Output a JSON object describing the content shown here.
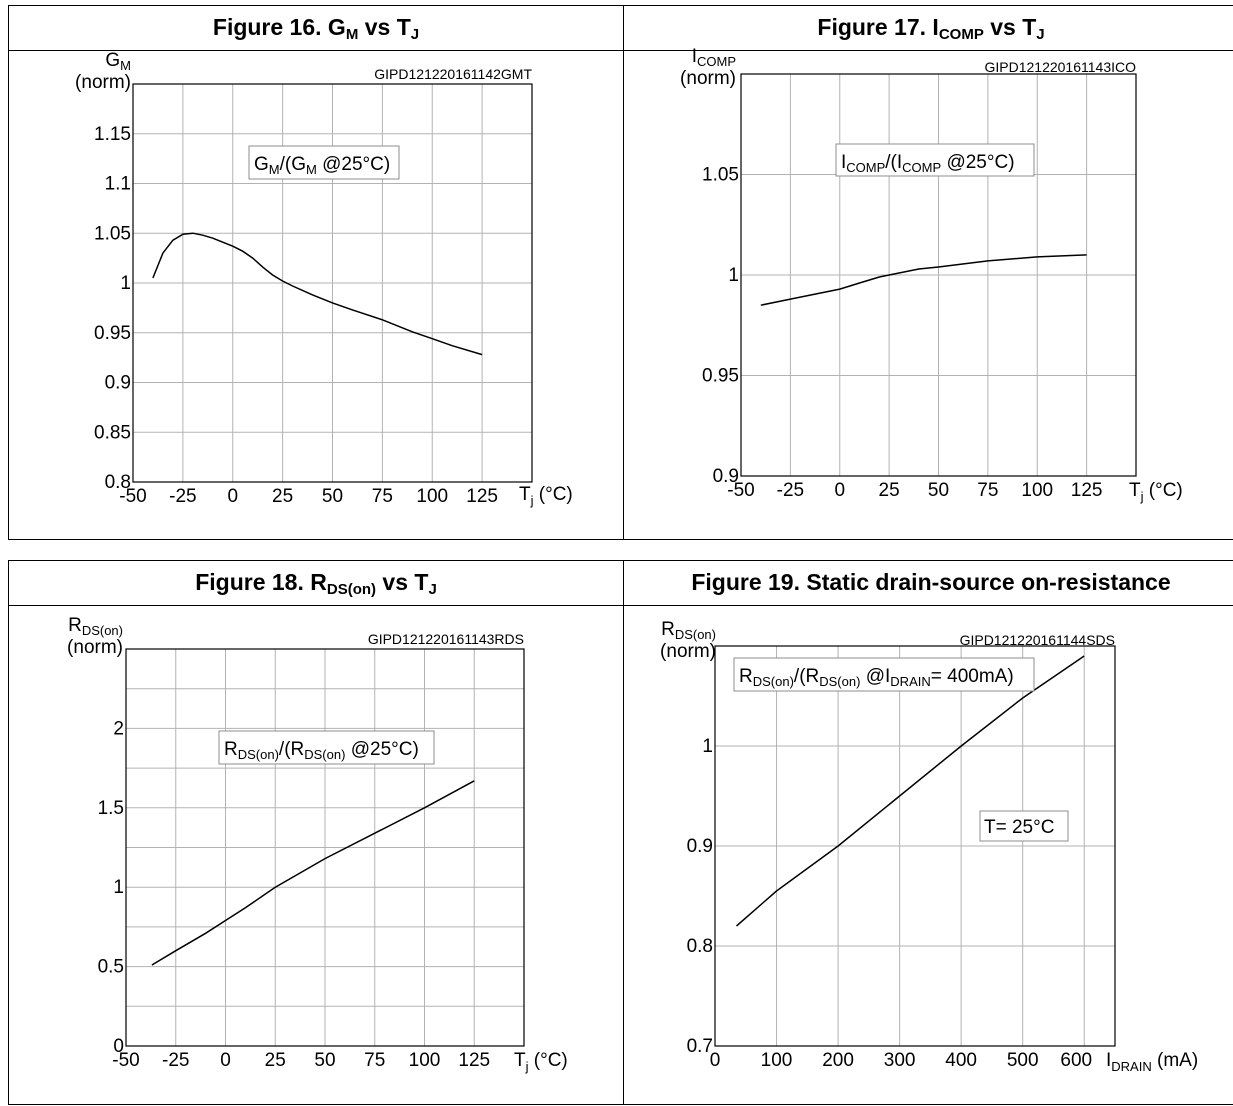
{
  "colors": {
    "background": "#ffffff",
    "grid": "#b3b3b3",
    "curve": "#000000"
  },
  "chart_data": [
    {
      "type": "line",
      "title": "Figure 16. G_M vs T_J",
      "title_parts": {
        "prefix": "Figure 16. G",
        "sub1": "M",
        "mid": " vs T",
        "sub2": "J"
      },
      "code": "GIPD121220161142GMT",
      "ylabel": "G_M (norm)",
      "ylabel_parts": {
        "main": "G",
        "sub": "M",
        "line2": "(norm)"
      },
      "xlabel": "T_j (°C)",
      "xlabel_parts": {
        "main": "T",
        "sub": "j",
        "rest": " (°C)"
      },
      "annotation": "G_M/(G_M @25°C)",
      "annotation_parts": [
        "G",
        "M",
        "/(G",
        "M",
        " @25°C)"
      ],
      "xlim": [
        -50,
        150
      ],
      "ylim": [
        0.8,
        1.2
      ],
      "xticks": [
        -50,
        -25,
        0,
        25,
        50,
        75,
        100,
        125
      ],
      "xtick_labels": [
        "-50",
        "-25",
        "0",
        "25",
        "50",
        "75",
        "100",
        "125"
      ],
      "yticks": [
        0.8,
        0.85,
        0.9,
        0.95,
        1,
        1.05,
        1.1,
        1.15
      ],
      "ytick_labels": [
        "0.8",
        "0.85",
        "0.9",
        "0.95",
        "1",
        "1.05",
        "1.1",
        "1.15"
      ],
      "grid": true,
      "series": [
        {
          "x": [
            -40,
            -35,
            -30,
            -25,
            -20,
            -15,
            -10,
            -5,
            0,
            5,
            10,
            15,
            20,
            25,
            30,
            40,
            50,
            60,
            75,
            90,
            100,
            110,
            125
          ],
          "y": [
            1.005,
            1.03,
            1.043,
            1.049,
            1.05,
            1.048,
            1.045,
            1.041,
            1.037,
            1.032,
            1.025,
            1.016,
            1.008,
            1.002,
            0.997,
            0.988,
            0.98,
            0.973,
            0.963,
            0.951,
            0.944,
            0.937,
            0.928
          ]
        }
      ]
    },
    {
      "type": "line",
      "title": "Figure 17. I_COMP vs T_J",
      "title_parts": {
        "prefix": "Figure 17. I",
        "sub1": "COMP",
        "mid": " vs T",
        "sub2": "J"
      },
      "code": "GIPD121220161143ICO",
      "ylabel": "I_COMP (norm)",
      "ylabel_parts": {
        "main": "I",
        "sub": "COMP",
        "line2": "(norm)"
      },
      "xlabel": "T_j (°C)",
      "xlabel_parts": {
        "main": "T",
        "sub": "j",
        "rest": " (°C)"
      },
      "annotation": "I_COMP/(I_COMP @25°C)",
      "annotation_parts": [
        "I",
        "COMP",
        "/(I",
        "COMP",
        " @25°C)"
      ],
      "xlim": [
        -50,
        150
      ],
      "ylim": [
        0.9,
        1.1
      ],
      "xticks": [
        -50,
        -25,
        0,
        25,
        50,
        75,
        100,
        125
      ],
      "xtick_labels": [
        "-50",
        "-25",
        "0",
        "25",
        "50",
        "75",
        "100",
        "125"
      ],
      "yticks": [
        0.9,
        0.95,
        1,
        1.05
      ],
      "ytick_labels": [
        "0.9",
        "0.95",
        "1",
        "1.05"
      ],
      "grid": true,
      "series": [
        {
          "x": [
            -40,
            -25,
            -10,
            0,
            10,
            20,
            25,
            40,
            50,
            75,
            100,
            125
          ],
          "y": [
            0.985,
            0.988,
            0.991,
            0.993,
            0.996,
            0.999,
            1.0,
            1.003,
            1.004,
            1.007,
            1.009,
            1.01
          ]
        }
      ]
    },
    {
      "type": "line",
      "title": "Figure 18. R_DS(on) vs T_J",
      "title_parts": {
        "prefix": "Figure 18. R",
        "sub1": "DS(on)",
        "mid": " vs T",
        "sub2": "J"
      },
      "code": "GIPD121220161143RDS",
      "ylabel": "R_DS(on) (norm)",
      "ylabel_parts": {
        "main": "R",
        "sub": "DS(on)",
        "line2": "(norm)"
      },
      "xlabel": "T_j (°C)",
      "xlabel_parts": {
        "main": "T",
        "sub": "j",
        "rest": " (°C)"
      },
      "annotation": "R_DS(on)/(R_DS(on) @25°C)",
      "annotation_parts": [
        "R",
        "DS(on)",
        "/(R",
        "DS(on)",
        " @25°C)"
      ],
      "xlim": [
        -50,
        150
      ],
      "ylim": [
        0,
        2.5
      ],
      "xticks": [
        -50,
        -25,
        0,
        25,
        50,
        75,
        100,
        125
      ],
      "xtick_labels": [
        "-50",
        "-25",
        "0",
        "25",
        "50",
        "75",
        "100",
        "125"
      ],
      "yticks": [
        0,
        0.5,
        1,
        1.5,
        2
      ],
      "ytick_labels": [
        "0",
        "0.5",
        "1",
        "1.5",
        "2"
      ],
      "minor_gridlines": [
        0.25,
        0.75,
        1.25,
        1.75,
        2.25
      ],
      "grid": true,
      "series": [
        {
          "x": [
            -37,
            -25,
            -10,
            0,
            10,
            25,
            50,
            75,
            100,
            125
          ],
          "y": [
            0.51,
            0.6,
            0.71,
            0.79,
            0.87,
            1.0,
            1.18,
            1.34,
            1.5,
            1.67
          ]
        }
      ]
    },
    {
      "type": "line",
      "title": "Figure 19. Static drain-source on-resistance",
      "title_parts": {
        "prefix": "Figure 19. Static drain-source on-resistance",
        "sub1": "",
        "mid": "",
        "sub2": ""
      },
      "code": "GIPD121220161144SDS",
      "ylabel": "R_DS(on) (norm)",
      "ylabel_parts": {
        "main": "R",
        "sub": "DS(on)",
        "line2": "(norm)"
      },
      "xlabel": "I_DRAIN (mA)",
      "xlabel_parts": {
        "main": "I",
        "sub": "DRAIN",
        "rest": " (mA)"
      },
      "annotation": "R_DS(on)/(R_DS(on) @I_DRAIN= 400mA)",
      "annotation_parts": [
        "R",
        "DS(on)",
        "/(R",
        "DS(on)",
        " @I",
        "DRAIN",
        "= 400mA)"
      ],
      "annotation2": "T= 25°C",
      "xlim": [
        0,
        650
      ],
      "ylim": [
        0.7,
        1.1
      ],
      "xticks": [
        0,
        100,
        200,
        300,
        400,
        500,
        600
      ],
      "xtick_labels": [
        "0",
        "100",
        "200",
        "300",
        "400",
        "500",
        "600"
      ],
      "yticks": [
        0.7,
        0.8,
        0.9,
        1
      ],
      "ytick_labels": [
        "0.7",
        "0.8",
        "0.9",
        "1"
      ],
      "grid": true,
      "series": [
        {
          "x": [
            35,
            100,
            200,
            300,
            400,
            500,
            600
          ],
          "y": [
            0.82,
            0.855,
            0.9,
            0.95,
            1.0,
            1.048,
            1.09
          ]
        }
      ]
    }
  ]
}
